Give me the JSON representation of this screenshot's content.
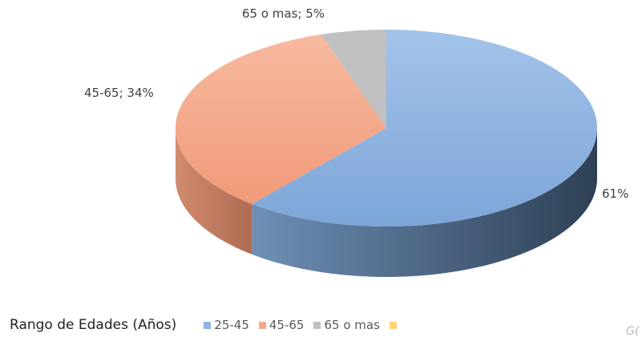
{
  "chart_data": {
    "type": "pie",
    "title": "",
    "legend_title": "Rango de Edades (Años)",
    "legend_position": "bottom",
    "categories": [
      "25-45",
      "45-65",
      "65 o mas",
      ""
    ],
    "values": [
      61,
      34,
      5,
      0
    ],
    "data_labels": [
      "61%",
      "45-65; 34%",
      "65 o mas; 5%",
      ""
    ],
    "colors": [
      "#8db4e2",
      "#f4a98a",
      "#c0c0c0",
      "#ffd27a"
    ],
    "side_colors": [
      "#4d6886",
      "#c17a60",
      "#8c8c8c",
      "#c9a04c"
    ]
  },
  "corner_text": "G("
}
